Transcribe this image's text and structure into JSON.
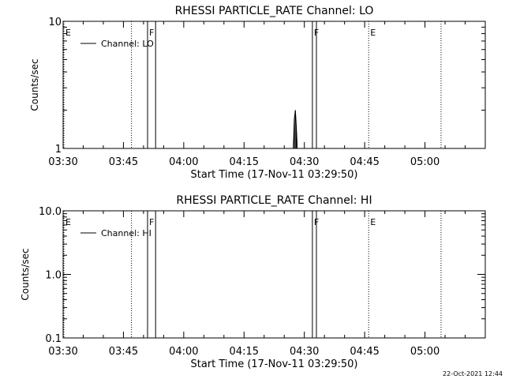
{
  "colors": {
    "background": "#ffffff",
    "foreground": "#000000"
  },
  "footer_timestamp": "22-Oct-2021 12:44",
  "chart_data": [
    {
      "type": "line",
      "title": "RHESSI PARTICLE_RATE Channel: LO",
      "xlabel": "Start Time (17-Nov-11 03:29:50)",
      "ylabel": "Counts/sec",
      "yscale": "log",
      "xlim": [
        "03:30",
        "05:15"
      ],
      "ylim": [
        1,
        10
      ],
      "x_ticks": [
        "03:30",
        "03:45",
        "04:00",
        "04:15",
        "04:30",
        "04:45",
        "05:00"
      ],
      "y_ticks": [
        "1",
        "10"
      ],
      "legend": {
        "placement": "top-left",
        "entries": [
          "Channel: LO"
        ]
      },
      "series": [
        {
          "name": "Channel: LO",
          "points": [
            {
              "x": "04:27:15",
              "y": 1.0
            },
            {
              "x": "04:27:30",
              "y": 1.7
            },
            {
              "x": "04:27:45",
              "y": 2.0
            },
            {
              "x": "04:28:00",
              "y": 1.5
            },
            {
              "x": "04:28:15",
              "y": 1.0
            }
          ]
        }
      ],
      "markers": [
        {
          "label": "E",
          "x": "03:30",
          "style": "dotted"
        },
        {
          "label": "",
          "x": "03:47",
          "style": "dotted"
        },
        {
          "label": "F",
          "x": "03:51",
          "style": "solid"
        },
        {
          "label": "",
          "x": "03:53",
          "style": "solid"
        },
        {
          "label": "F",
          "x": "04:32",
          "style": "solid"
        },
        {
          "label": "",
          "x": "04:33",
          "style": "solid"
        },
        {
          "label": "E",
          "x": "04:46",
          "style": "dotted"
        },
        {
          "label": "",
          "x": "05:04",
          "style": "dotted"
        }
      ]
    },
    {
      "type": "line",
      "title": "RHESSI PARTICLE_RATE Channel: HI",
      "xlabel": "Start Time (17-Nov-11 03:29:50)",
      "ylabel": "Counts/sec",
      "yscale": "log",
      "xlim": [
        "03:30",
        "05:15"
      ],
      "ylim": [
        0.1,
        10
      ],
      "x_ticks": [
        "03:30",
        "03:45",
        "04:00",
        "04:15",
        "04:30",
        "04:45",
        "05:00"
      ],
      "y_ticks": [
        "0.1",
        "1.0",
        "10.0"
      ],
      "legend": {
        "placement": "top-left",
        "entries": [
          "Channel: HI"
        ]
      },
      "series": [
        {
          "name": "Channel: HI",
          "points": []
        }
      ],
      "markers": [
        {
          "label": "E",
          "x": "03:30",
          "style": "dotted"
        },
        {
          "label": "",
          "x": "03:47",
          "style": "dotted"
        },
        {
          "label": "F",
          "x": "03:51",
          "style": "solid"
        },
        {
          "label": "",
          "x": "03:53",
          "style": "solid"
        },
        {
          "label": "F",
          "x": "04:32",
          "style": "solid"
        },
        {
          "label": "",
          "x": "04:33",
          "style": "solid"
        },
        {
          "label": "E",
          "x": "04:46",
          "style": "dotted"
        },
        {
          "label": "",
          "x": "05:04",
          "style": "dotted"
        }
      ]
    }
  ]
}
